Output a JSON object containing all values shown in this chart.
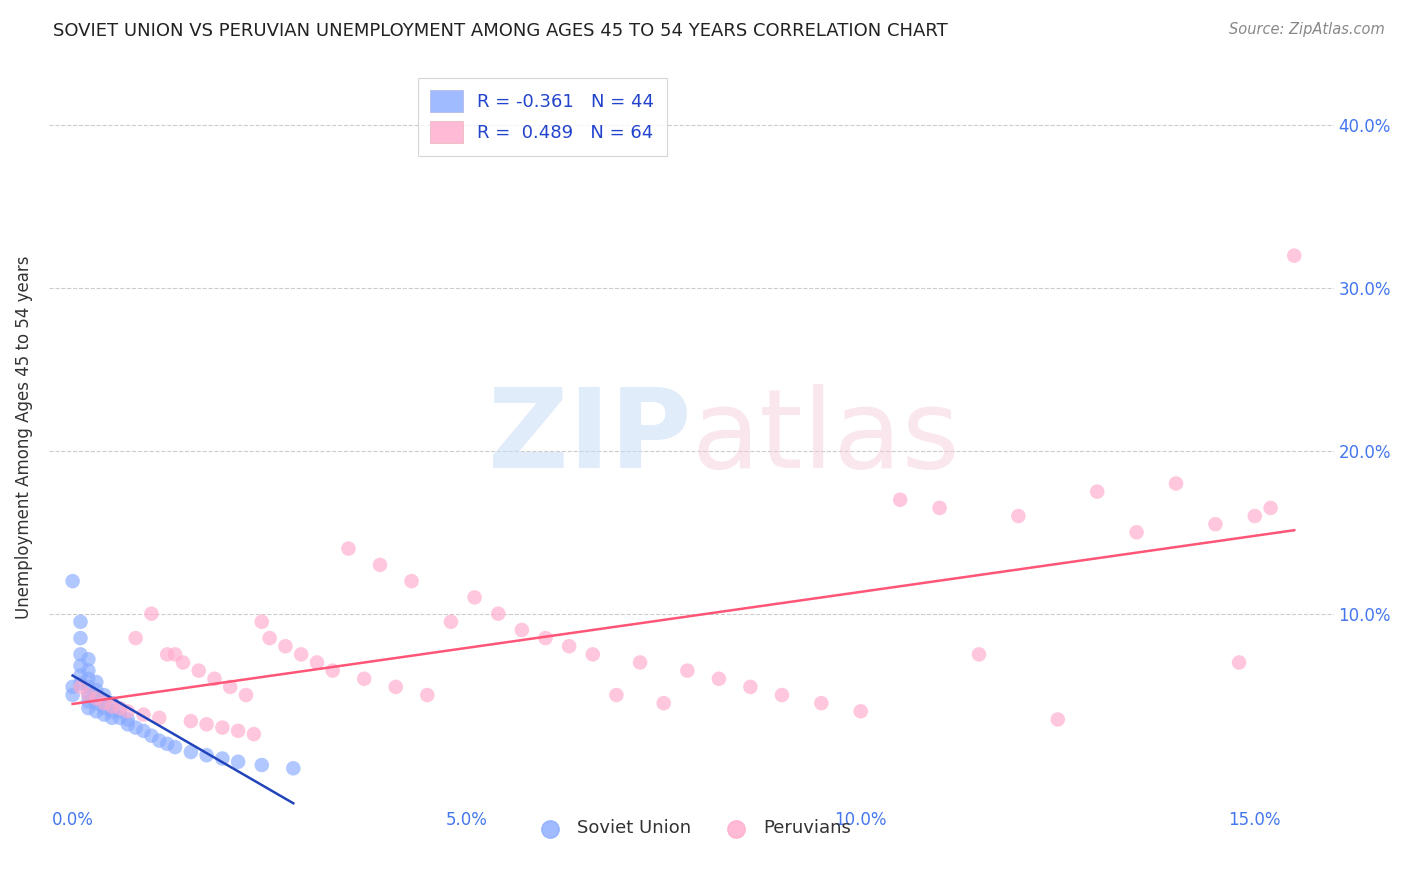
{
  "title": "SOVIET UNION VS PERUVIAN UNEMPLOYMENT AMONG AGES 45 TO 54 YEARS CORRELATION CHART",
  "source": "Source: ZipAtlas.com",
  "ylabel": "Unemployment Among Ages 45 to 54 years",
  "xlabel_ticks": [
    "0.0%",
    "5.0%",
    "10.0%",
    "15.0%"
  ],
  "xlabel_vals": [
    0.0,
    0.05,
    0.1,
    0.15
  ],
  "ylabel_ticks": [
    "10.0%",
    "20.0%",
    "30.0%",
    "40.0%"
  ],
  "ylabel_vals": [
    0.1,
    0.2,
    0.3,
    0.4
  ],
  "xlim": [
    -0.003,
    0.16
  ],
  "ylim": [
    -0.018,
    0.435
  ],
  "soviet_color": "#88aaff",
  "peru_color": "#ffaacc",
  "soviet_line_color": "#2244bb",
  "peru_line_color": "#ff5577",
  "soviet_R": -0.361,
  "soviet_N": 44,
  "peru_R": 0.489,
  "peru_N": 64,
  "soviet_x": [
    0.0,
    0.0,
    0.001,
    0.001,
    0.001,
    0.001,
    0.001,
    0.001,
    0.002,
    0.002,
    0.002,
    0.002,
    0.002,
    0.002,
    0.002,
    0.003,
    0.003,
    0.003,
    0.003,
    0.003,
    0.004,
    0.004,
    0.004,
    0.004,
    0.005,
    0.005,
    0.005,
    0.006,
    0.006,
    0.007,
    0.007,
    0.008,
    0.009,
    0.01,
    0.011,
    0.012,
    0.013,
    0.015,
    0.017,
    0.019,
    0.021,
    0.024,
    0.028,
    0.0
  ],
  "soviet_y": [
    0.12,
    0.055,
    0.095,
    0.085,
    0.075,
    0.068,
    0.062,
    0.057,
    0.072,
    0.065,
    0.06,
    0.055,
    0.05,
    0.046,
    0.042,
    0.058,
    0.053,
    0.049,
    0.045,
    0.04,
    0.05,
    0.046,
    0.042,
    0.038,
    0.045,
    0.04,
    0.036,
    0.04,
    0.036,
    0.035,
    0.032,
    0.03,
    0.028,
    0.025,
    0.022,
    0.02,
    0.018,
    0.015,
    0.013,
    0.011,
    0.009,
    0.007,
    0.005,
    0.05
  ],
  "peru_x": [
    0.001,
    0.002,
    0.003,
    0.004,
    0.005,
    0.006,
    0.007,
    0.008,
    0.009,
    0.01,
    0.011,
    0.012,
    0.013,
    0.014,
    0.015,
    0.016,
    0.017,
    0.018,
    0.019,
    0.02,
    0.021,
    0.022,
    0.023,
    0.024,
    0.025,
    0.027,
    0.029,
    0.031,
    0.033,
    0.035,
    0.037,
    0.039,
    0.041,
    0.043,
    0.045,
    0.048,
    0.051,
    0.054,
    0.057,
    0.06,
    0.063,
    0.066,
    0.069,
    0.072,
    0.075,
    0.078,
    0.082,
    0.086,
    0.09,
    0.095,
    0.1,
    0.105,
    0.11,
    0.115,
    0.12,
    0.125,
    0.13,
    0.135,
    0.14,
    0.145,
    0.148,
    0.15,
    0.152,
    0.155
  ],
  "peru_y": [
    0.055,
    0.05,
    0.048,
    0.045,
    0.043,
    0.042,
    0.04,
    0.085,
    0.038,
    0.1,
    0.036,
    0.075,
    0.075,
    0.07,
    0.034,
    0.065,
    0.032,
    0.06,
    0.03,
    0.055,
    0.028,
    0.05,
    0.026,
    0.095,
    0.085,
    0.08,
    0.075,
    0.07,
    0.065,
    0.14,
    0.06,
    0.13,
    0.055,
    0.12,
    0.05,
    0.095,
    0.11,
    0.1,
    0.09,
    0.085,
    0.08,
    0.075,
    0.05,
    0.07,
    0.045,
    0.065,
    0.06,
    0.055,
    0.05,
    0.045,
    0.04,
    0.17,
    0.165,
    0.075,
    0.16,
    0.035,
    0.175,
    0.15,
    0.18,
    0.155,
    0.07,
    0.16,
    0.165,
    0.32
  ]
}
